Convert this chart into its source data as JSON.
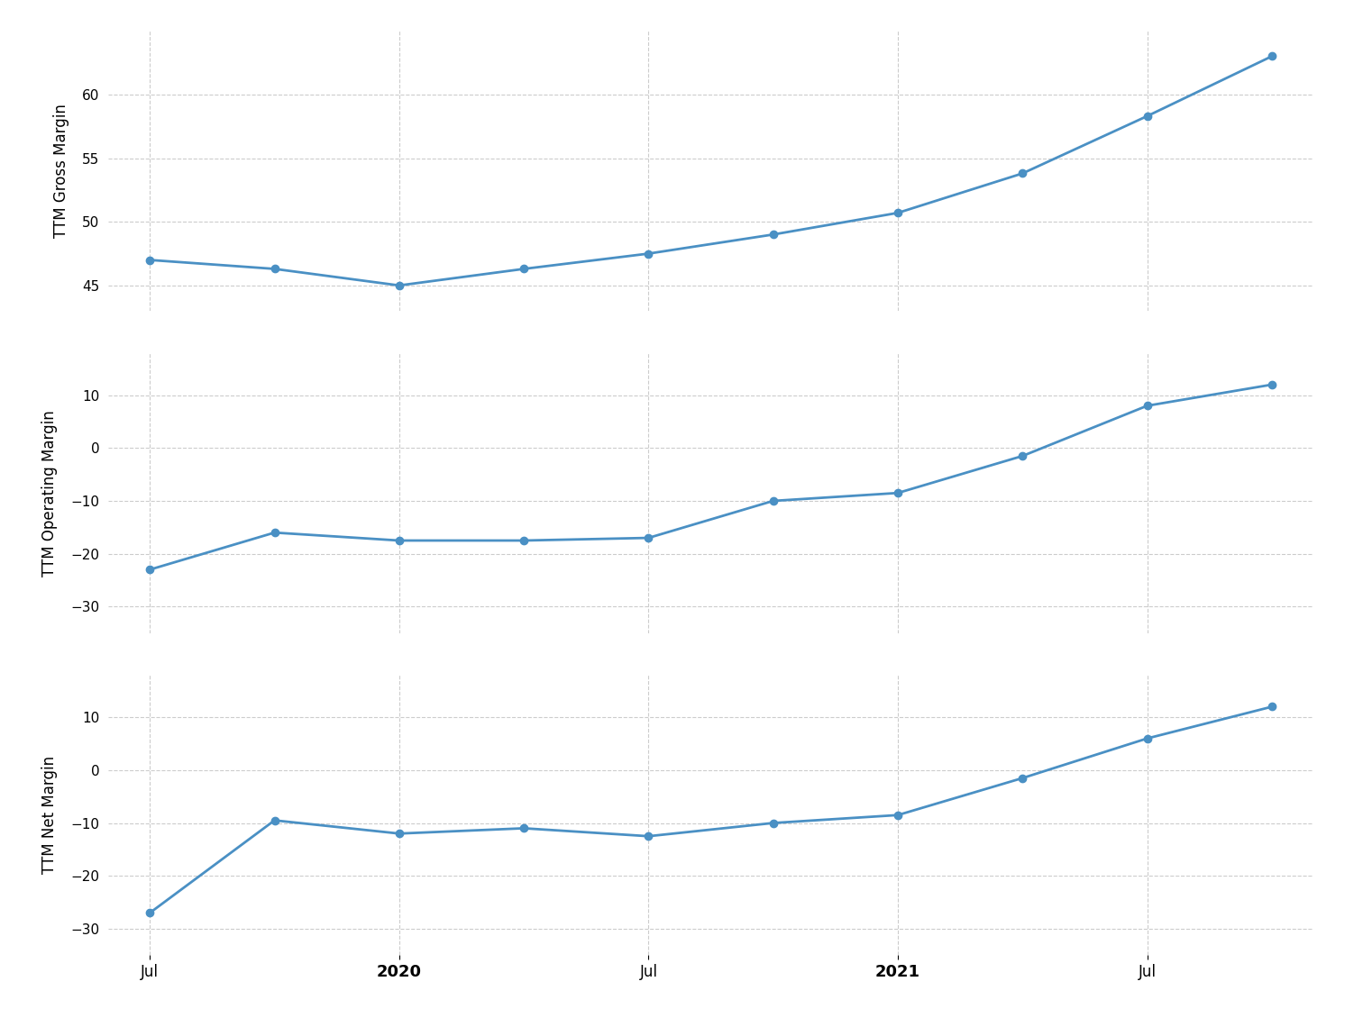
{
  "gross_margin": {
    "x": [
      0,
      3,
      6,
      9,
      12,
      15,
      18,
      21,
      24,
      27
    ],
    "y": [
      47.0,
      46.3,
      45.0,
      46.3,
      47.5,
      49.0,
      50.7,
      53.8,
      58.3,
      63.0
    ],
    "ylabel": "TTM Gross Margin",
    "ylim": [
      43,
      65
    ],
    "yticks": [
      45,
      50,
      55,
      60
    ]
  },
  "operating_margin": {
    "x": [
      0,
      3,
      6,
      9,
      12,
      15,
      18,
      21,
      24,
      27
    ],
    "y": [
      -23.0,
      -16.0,
      -17.5,
      -17.5,
      -17.0,
      -10.0,
      -8.5,
      -1.5,
      8.0,
      12.0
    ],
    "ylabel": "TTM Operating Margin",
    "ylim": [
      -35,
      18
    ],
    "yticks": [
      -30,
      -20,
      -10,
      0,
      10
    ]
  },
  "net_margin": {
    "x": [
      0,
      3,
      6,
      9,
      12,
      15,
      18,
      21,
      24,
      27
    ],
    "y": [
      -27.0,
      -9.5,
      -12.0,
      -11.0,
      -12.5,
      -10.0,
      -8.5,
      -1.5,
      6.0,
      12.0
    ],
    "ylabel": "TTM Net Margin",
    "ylim": [
      -35,
      18
    ],
    "yticks": [
      -30,
      -20,
      -10,
      0,
      10
    ]
  },
  "line_color": "#4a90c4",
  "marker_color": "#4a90c4",
  "background_color": "#ffffff",
  "grid_color": "#cccccc",
  "x_tick_positions": [
    0,
    6,
    12,
    18,
    24
  ],
  "x_tick_labels": [
    "Jul",
    "2020",
    "Jul",
    "2021",
    "Jul"
  ],
  "x_bold_labels": [
    "2020",
    "2021"
  ],
  "xlim": [
    -1,
    28
  ]
}
